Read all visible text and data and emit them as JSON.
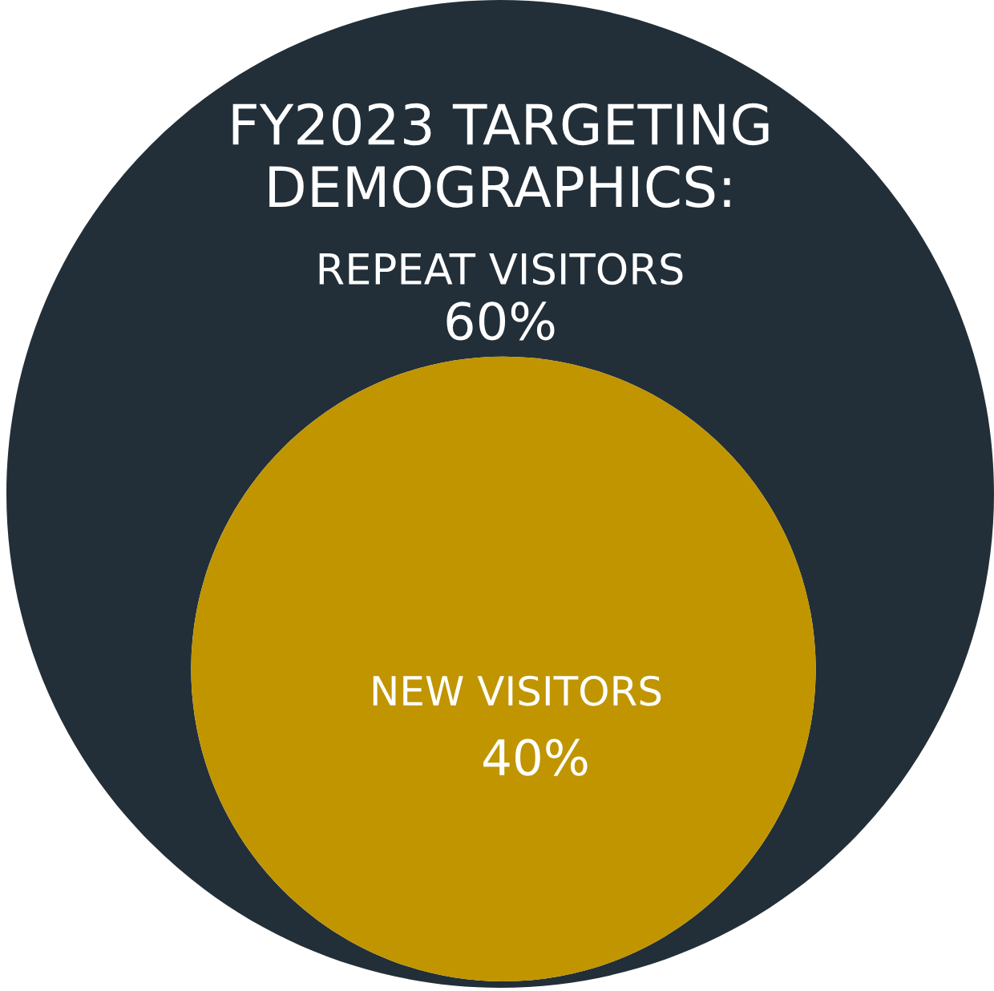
{
  "chart_data": {
    "type": "other",
    "title": "FY2023 TARGETING\nDEMOGRAPHICS:",
    "categories": [
      "REPEAT VISITORS",
      "NEW VISITORS"
    ],
    "values": [
      60,
      40
    ],
    "value_labels": [
      "60%",
      "40%"
    ],
    "colors": [
      "#222f38",
      "#c09500"
    ]
  }
}
